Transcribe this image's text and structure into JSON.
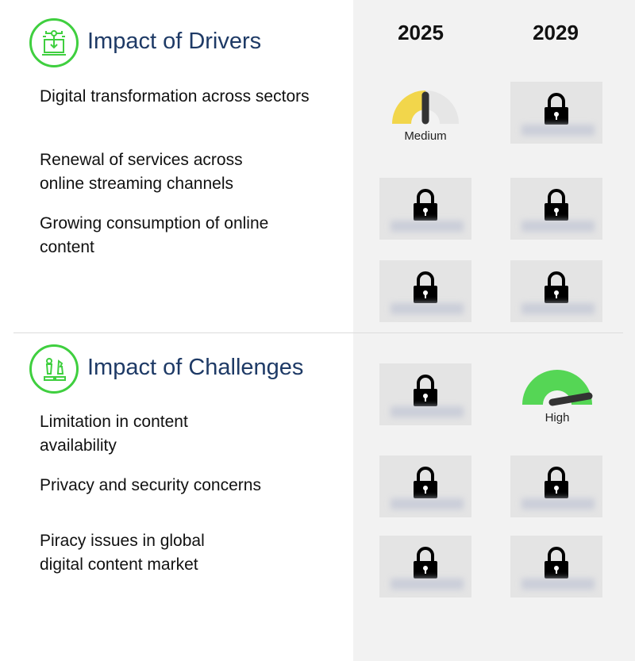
{
  "columns": [
    "2025",
    "2029"
  ],
  "drivers": {
    "title": "Impact of Drivers",
    "icon": "digital-transformation-icon",
    "items": [
      "Digital transformation across sectors",
      "Renewal of services across online streaming channels",
      "Growing consumption of online content"
    ],
    "ratings": [
      [
        "Medium",
        "locked"
      ],
      [
        "locked",
        "locked"
      ],
      [
        "locked",
        "locked"
      ]
    ]
  },
  "challenges": {
    "title": "Impact of Challenges",
    "icon": "chess-strategy-icon",
    "items": [
      "Limitation in content availability",
      "Privacy and security concerns",
      "Piracy issues in global digital content market"
    ],
    "ratings": [
      [
        "locked",
        "High"
      ],
      [
        "locked",
        "locked"
      ],
      [
        "locked",
        "locked"
      ]
    ]
  },
  "gauges": {
    "medium": {
      "label": "Medium",
      "level": 0.5,
      "color": "#f2d64b"
    },
    "high": {
      "label": "High",
      "level": 0.95,
      "color": "#55d655"
    }
  },
  "colors": {
    "accent": "#3fcf3f",
    "title": "#1e3a66",
    "panel": "#f2f2f2"
  }
}
